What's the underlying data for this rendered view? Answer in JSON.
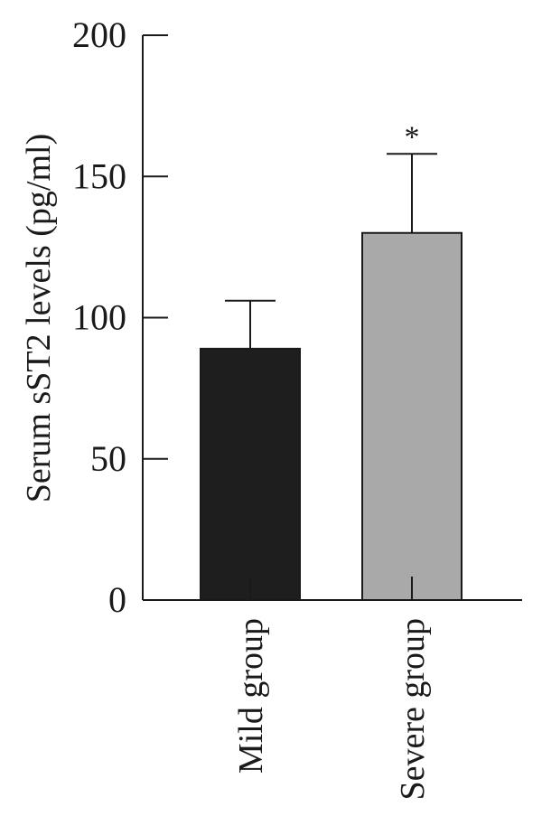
{
  "chart_data": {
    "type": "bar",
    "title": "",
    "ylabel": "Serum sST2 levels (pg/ml)",
    "xlabel": "",
    "ylim": [
      0,
      200
    ],
    "yticks": [
      0,
      50,
      100,
      150,
      200
    ],
    "categories": [
      "Mild group",
      "Severe group"
    ],
    "values": [
      89,
      130
    ],
    "error_upper": [
      106,
      158
    ],
    "bar_colors": [
      "#1e1e1e",
      "#a9a9a9"
    ],
    "annotations": [
      "",
      "*"
    ],
    "grid": false,
    "legend": "none"
  }
}
